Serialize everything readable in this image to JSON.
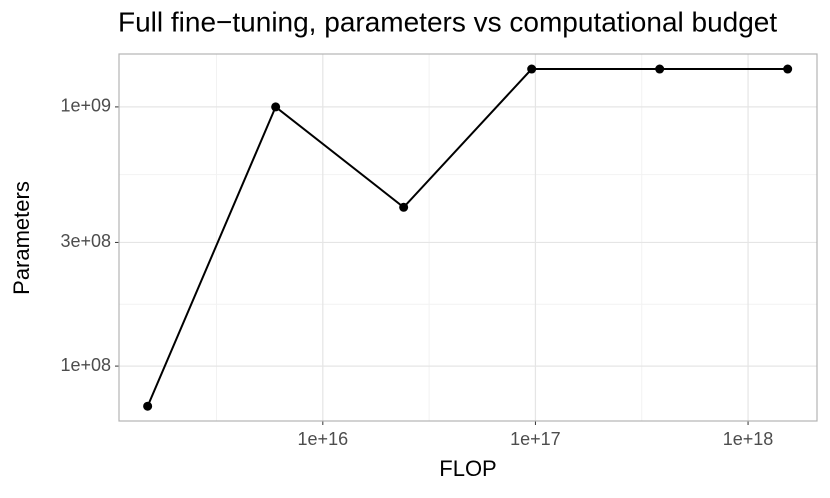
{
  "chart_data": {
    "type": "line",
    "title": "Full fine−tuning, parameters vs computational budget",
    "x_label": "FLOP",
    "y_label": "Parameters",
    "x": [
      1500000000000000.0,
      6000000000000000.0,
      2.4e+16,
      9.6e+16,
      3.84e+17,
      1.536e+18
    ],
    "series": [
      {
        "color": "#000000",
        "values": [
          70000000,
          1000000000,
          410000000,
          1400000000,
          1400000000,
          1400000000
        ]
      }
    ],
    "xscale": "log",
    "yscale": "log",
    "xlim": [
      1100000000000000.0,
      2.11e+18
    ],
    "ylim": [
      61400000,
      1600000000
    ],
    "xticks": [
      {
        "value": 1e+16,
        "label": "1e+16"
      },
      {
        "value": 1e+17,
        "label": "1e+17"
      },
      {
        "value": 1e+18,
        "label": "1e+18"
      }
    ],
    "yticks": [
      {
        "value": 100000000,
        "label": "1e+08"
      },
      {
        "value": 300000000,
        "label": "3e+08"
      },
      {
        "value": 1000000000,
        "label": "1e+09"
      }
    ],
    "grid": true
  }
}
